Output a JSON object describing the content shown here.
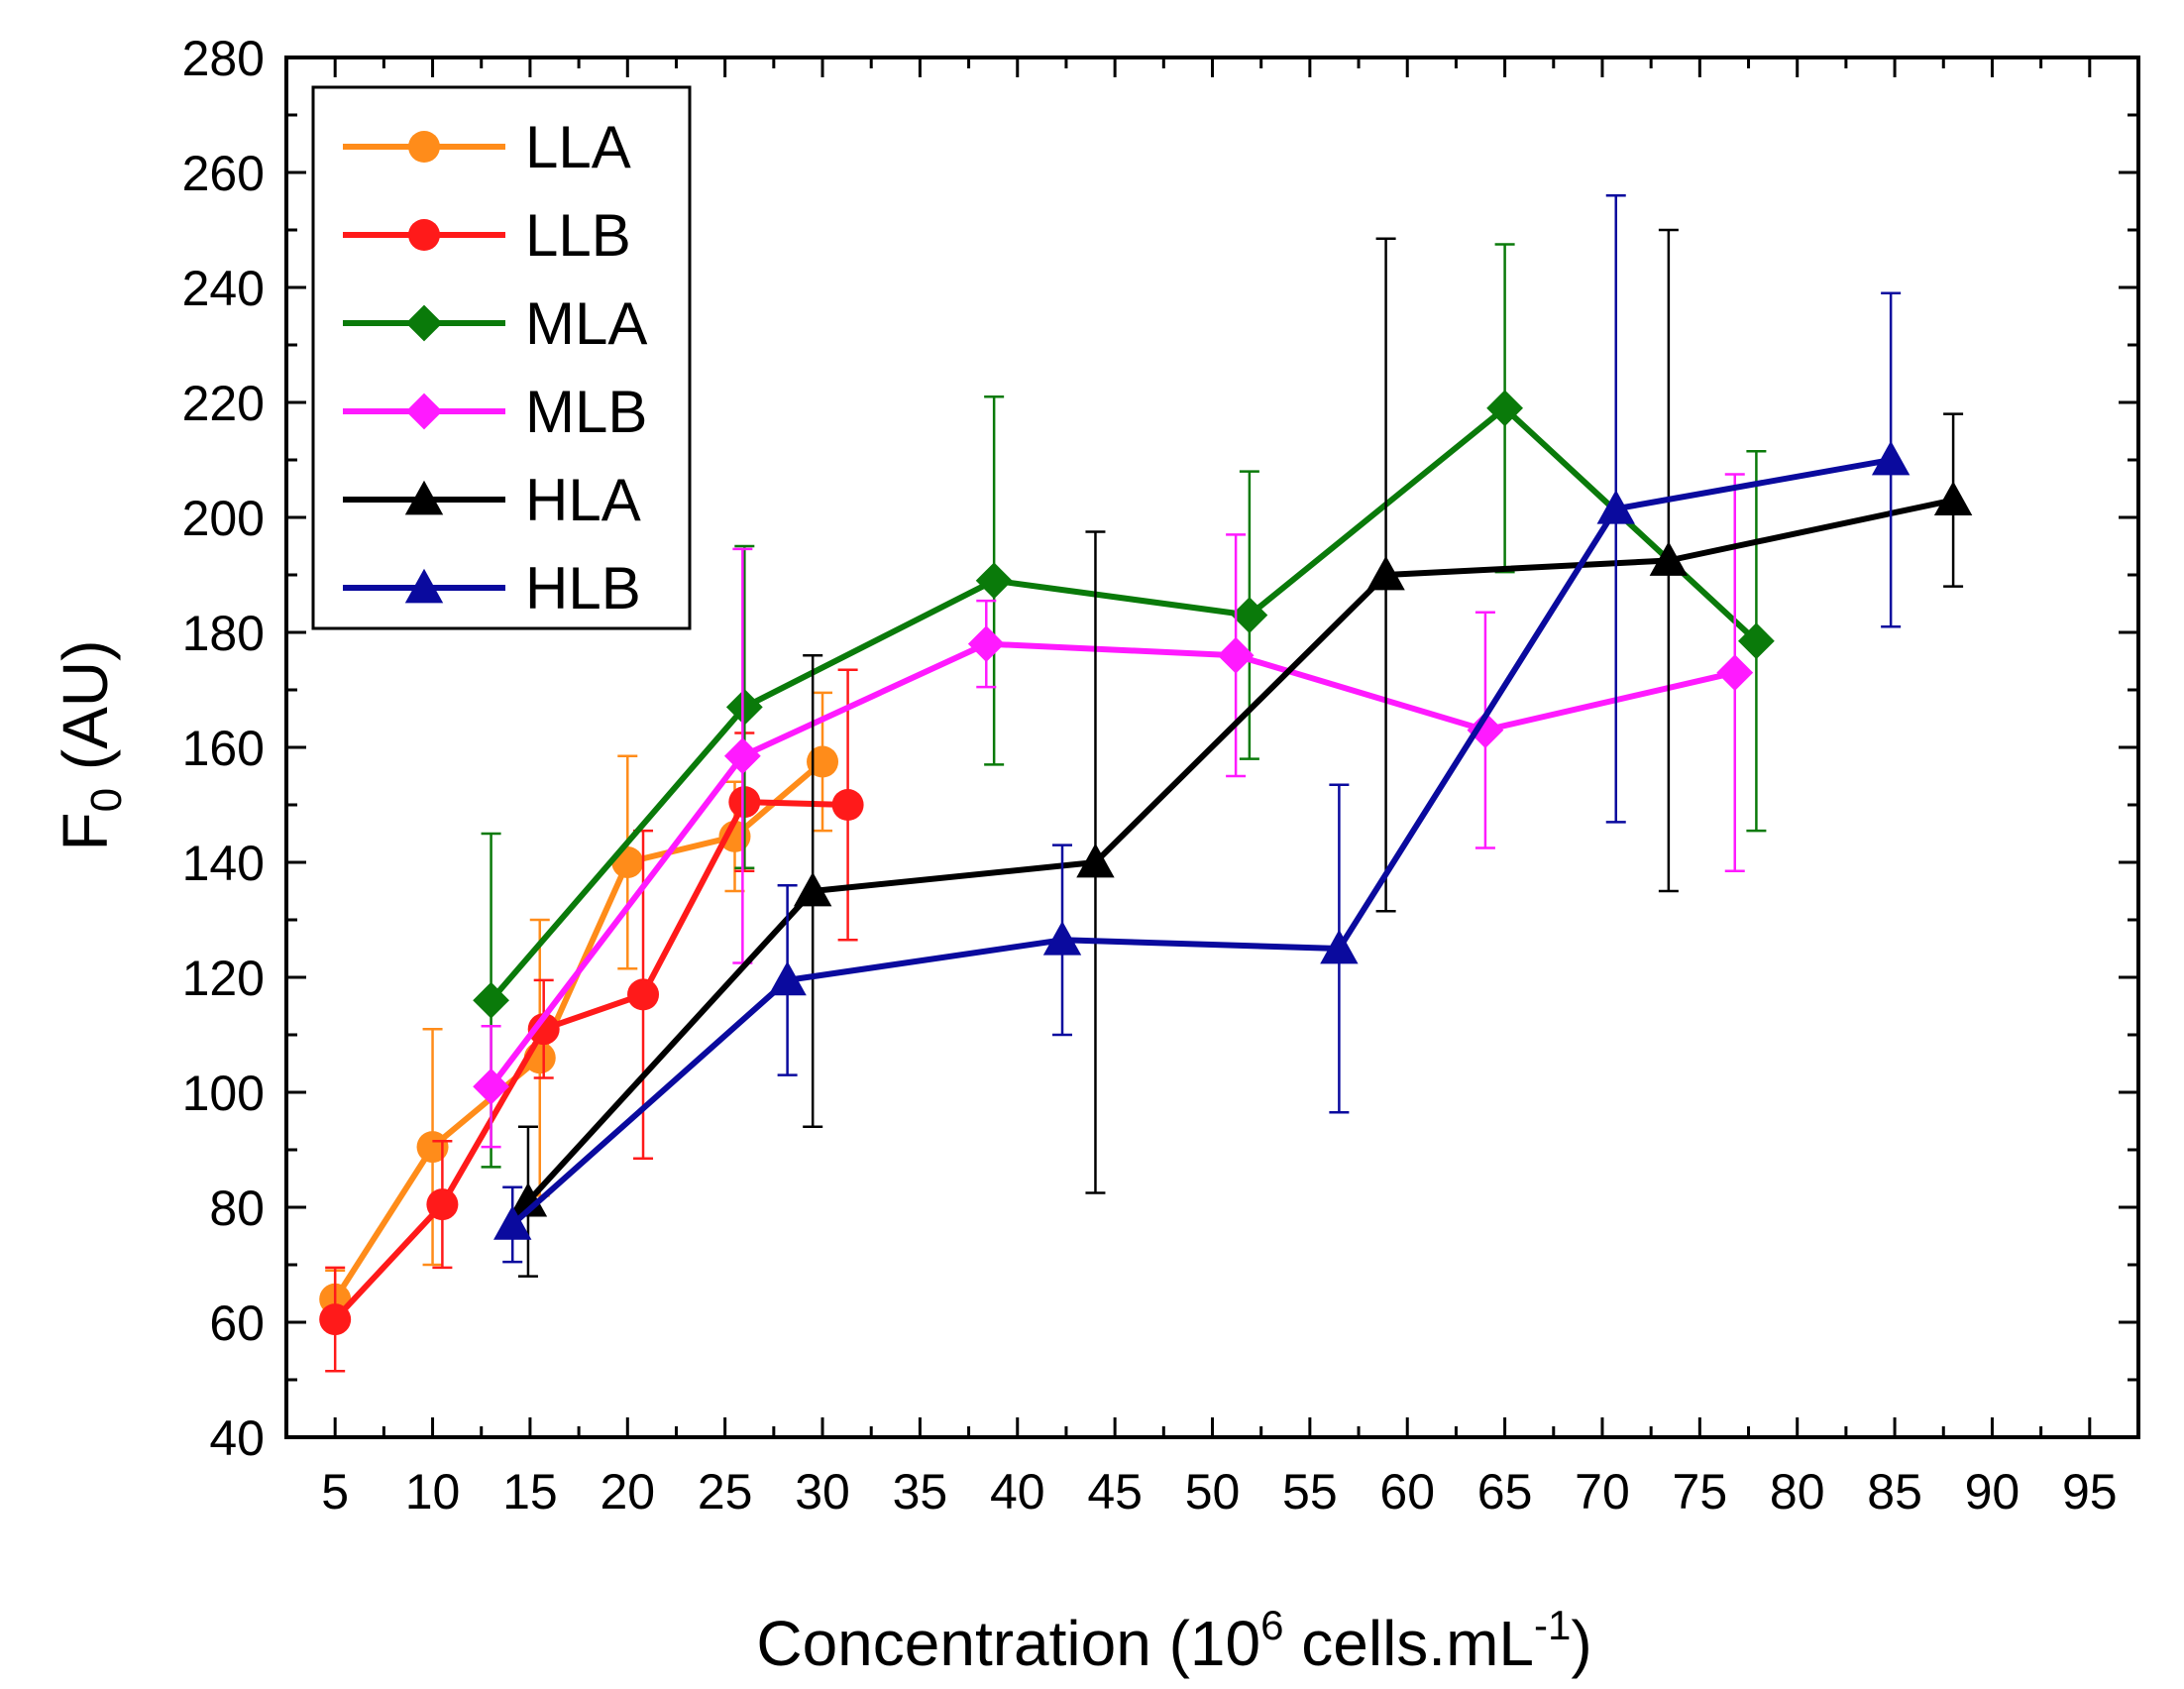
{
  "chart_data": {
    "type": "line",
    "title": "",
    "xlabel": {
      "main": "Concentration (10",
      "sup1": "6",
      "mid": " cells.mL",
      "sup2": "-1",
      "end": ")"
    },
    "ylabel": {
      "main": "F",
      "sub": "0",
      "end": " (AU)"
    },
    "xlim": [
      2.5,
      97.5
    ],
    "ylim": [
      40,
      280
    ],
    "xticks": [
      5,
      10,
      15,
      20,
      25,
      30,
      35,
      40,
      45,
      50,
      55,
      60,
      65,
      70,
      75,
      80,
      85,
      90,
      95
    ],
    "yticks": [
      40,
      60,
      80,
      100,
      120,
      140,
      160,
      180,
      200,
      220,
      240,
      260,
      280
    ],
    "legend_position": "top-left",
    "series": [
      {
        "name": "LLA",
        "color": "#ff8c1a",
        "marker": "circle",
        "x": [
          5,
          10,
          15.5,
          20,
          25.5,
          30
        ],
        "y": [
          64,
          90.5,
          106,
          140,
          144.5,
          157.5
        ],
        "err": [
          5,
          20.5,
          24,
          18.5,
          9.5,
          12
        ]
      },
      {
        "name": "LLB",
        "color": "#ff1a1a",
        "marker": "circle",
        "x": [
          5,
          10.5,
          15.7,
          20.8,
          26,
          31.3
        ],
        "y": [
          60.5,
          80.5,
          111,
          117,
          150.5,
          150
        ],
        "err": [
          9,
          11,
          8.5,
          28.5,
          12,
          23.5
        ]
      },
      {
        "name": "MLA",
        "color": "#0a7a0a",
        "marker": "diamond",
        "x": [
          13,
          26,
          38.8,
          51.9,
          65,
          77.9
        ],
        "y": [
          116,
          167,
          189,
          183,
          219,
          178.5
        ],
        "err": [
          29,
          28,
          32,
          25,
          28.5,
          33
        ]
      },
      {
        "name": "MLB",
        "color": "#ff1aff",
        "marker": "diamond",
        "x": [
          13,
          25.9,
          38.4,
          51.2,
          64,
          76.8
        ],
        "y": [
          101,
          158.5,
          178,
          176,
          163,
          173
        ],
        "err": [
          10.5,
          36,
          7.5,
          21,
          20.5,
          34.5
        ]
      },
      {
        "name": "HLA",
        "color": "#000000",
        "marker": "triangle",
        "x": [
          14.9,
          29.5,
          44,
          58.9,
          73.4,
          88
        ],
        "y": [
          81,
          135,
          140,
          190,
          192.5,
          203
        ],
        "err": [
          13,
          41,
          57.5,
          58.5,
          57.5,
          15
        ]
      },
      {
        "name": "HLB",
        "color": "#0a0a9e",
        "marker": "triangle",
        "x": [
          14.1,
          28.2,
          42.3,
          56.5,
          70.7,
          84.8
        ],
        "y": [
          77,
          119.5,
          126.5,
          125,
          201.5,
          210
        ],
        "err": [
          6.5,
          16.5,
          16.5,
          28.5,
          54.5,
          29
        ]
      }
    ]
  }
}
